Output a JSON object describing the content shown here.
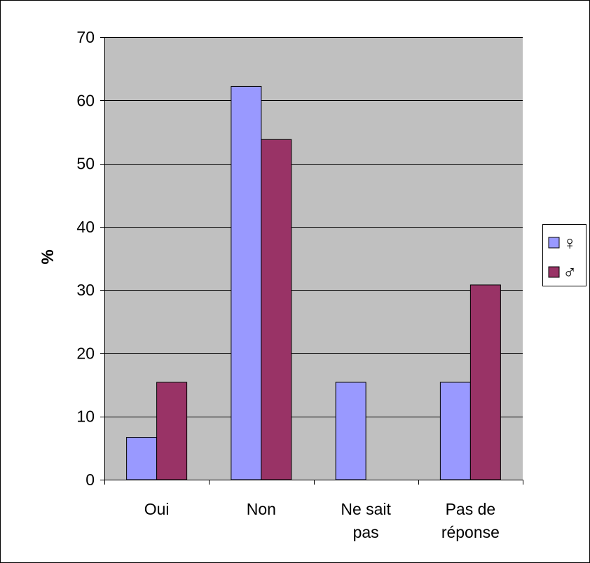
{
  "chart_data": {
    "type": "bar",
    "title": "",
    "xlabel": "",
    "ylabel": "%",
    "ylim": [
      0,
      70
    ],
    "yticks": [
      0,
      10,
      20,
      30,
      40,
      50,
      60,
      70
    ],
    "grid": true,
    "legend_position": "right",
    "categories": [
      [
        "Oui"
      ],
      [
        "Non"
      ],
      [
        "Ne sait",
        "pas"
      ],
      [
        "Pas de",
        "réponse"
      ]
    ],
    "series": [
      {
        "name": "♀",
        "color": "#9999FF",
        "values": [
          6.7,
          62.2,
          15.4,
          15.4
        ]
      },
      {
        "name": "♂",
        "color": "#993366",
        "values": [
          15.4,
          53.8,
          0,
          30.8
        ]
      }
    ],
    "colors": {
      "plot_background": "#C0C0C0",
      "grid": "#000000"
    }
  }
}
